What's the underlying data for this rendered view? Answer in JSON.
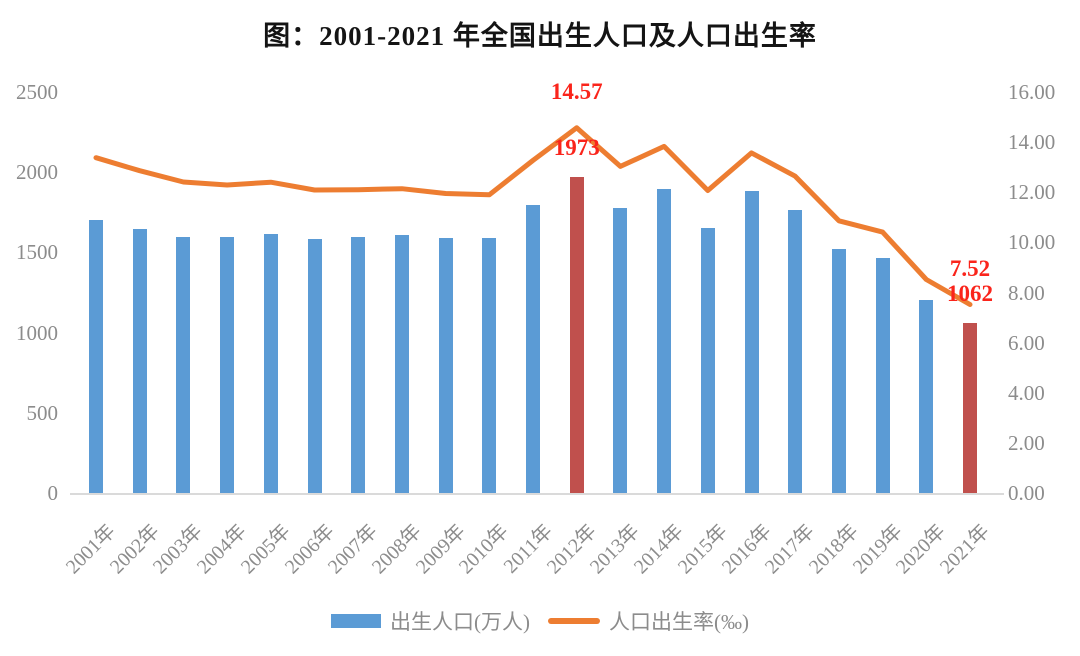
{
  "title": {
    "text": "图：2001-2021 年全国出生人口及人口出生率"
  },
  "colors": {
    "bar": "#5B9BD5",
    "bar_highlight": "#C0504D",
    "line": "#ED7D31",
    "annotation": "#FA241B",
    "axis_text": "#8C8C8C",
    "legend_text": "#8C8C8C",
    "title_text": "#141414",
    "axis_line": "#DADADA"
  },
  "left_axis": {
    "ticks": [
      {
        "label": "2500",
        "value": 2500
      },
      {
        "label": "2000",
        "value": 2000
      },
      {
        "label": "1500",
        "value": 1500
      },
      {
        "label": "1000",
        "value": 1000
      },
      {
        "label": "500",
        "value": 500
      },
      {
        "label": "0",
        "value": 0
      }
    ]
  },
  "right_axis": {
    "ticks": [
      {
        "label": "16.00",
        "value": 16
      },
      {
        "label": "14.00",
        "value": 14
      },
      {
        "label": "12.00",
        "value": 12
      },
      {
        "label": "10.00",
        "value": 10
      },
      {
        "label": "8.00",
        "value": 8
      },
      {
        "label": "6.00",
        "value": 6
      },
      {
        "label": "4.00",
        "value": 4
      },
      {
        "label": "2.00",
        "value": 2
      },
      {
        "label": "0.00",
        "value": 0
      }
    ]
  },
  "legend": {
    "items": [
      {
        "label": "出生人口(万人)",
        "type": "bar"
      },
      {
        "label": "人口出生率(‰)",
        "type": "line"
      }
    ]
  },
  "annotations": [
    {
      "text": "14.57",
      "target": "line",
      "category": "2012年"
    },
    {
      "text": "1973",
      "target": "bar",
      "category": "2012年"
    },
    {
      "text": "7.52",
      "target": "line",
      "category": "2021年"
    },
    {
      "text": "1062",
      "target": "bar",
      "category": "2021年"
    }
  ],
  "chart_data": {
    "type": "bar+line combo",
    "title": "图：2001-2021 年全国出生人口及人口出生率",
    "categories": [
      "2001年",
      "2002年",
      "2003年",
      "2004年",
      "2005年",
      "2006年",
      "2007年",
      "2008年",
      "2009年",
      "2010年",
      "2011年",
      "2012年",
      "2013年",
      "2014年",
      "2015年",
      "2016年",
      "2017年",
      "2018年",
      "2019年",
      "2020年",
      "2021年"
    ],
    "series": [
      {
        "name": "出生人口(万人)",
        "type": "bar",
        "axis": "left",
        "values": [
          1702,
          1647,
          1599,
          1593,
          1617,
          1585,
          1595,
          1608,
          1591,
          1588,
          1797,
          1973,
          1776,
          1893,
          1655,
          1883,
          1765,
          1523,
          1465,
          1202,
          1062
        ],
        "highlight_indices": [
          11,
          20
        ]
      },
      {
        "name": "人口出生率(‰)",
        "type": "line",
        "axis": "right",
        "values": [
          13.38,
          12.86,
          12.41,
          12.29,
          12.4,
          12.09,
          12.1,
          12.14,
          11.95,
          11.9,
          13.27,
          14.57,
          13.03,
          13.83,
          12.07,
          13.57,
          12.64,
          10.86,
          10.41,
          8.52,
          7.52
        ]
      }
    ],
    "left_ylim": [
      0,
      2500
    ],
    "right_ylim": [
      0,
      16
    ],
    "grid": false,
    "legend_position": "bottom"
  }
}
